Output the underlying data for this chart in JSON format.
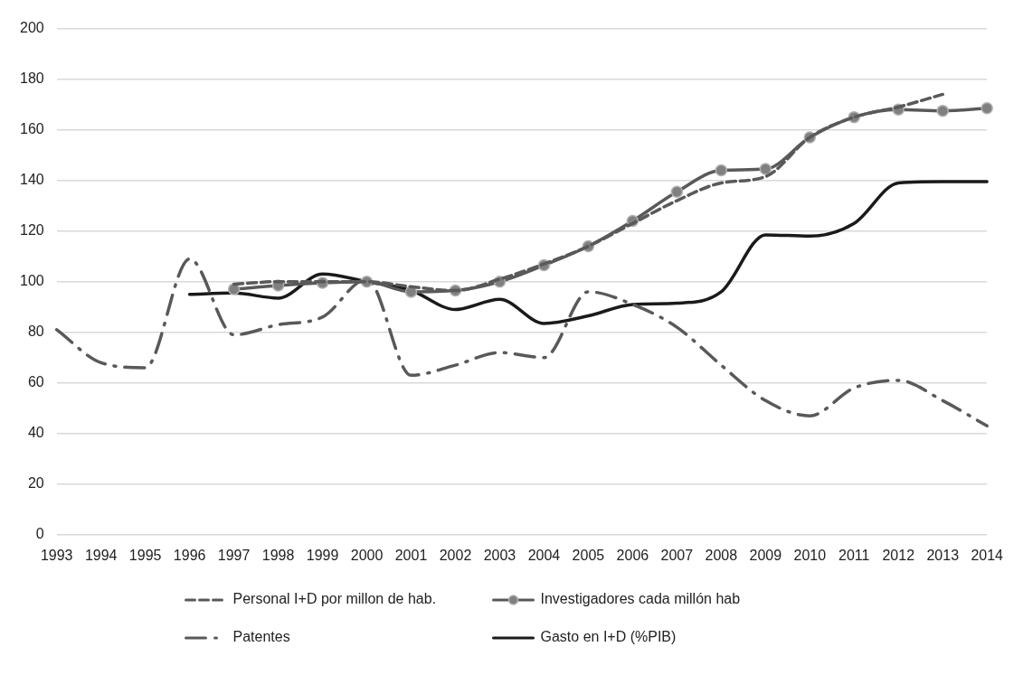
{
  "chart_data": {
    "type": "line",
    "categories": [
      "1993",
      "1994",
      "1995",
      "1996",
      "1997",
      "1998",
      "1999",
      "2000",
      "2001",
      "2002",
      "2003",
      "2004",
      "2005",
      "2006",
      "2007",
      "2008",
      "2009",
      "2010",
      "2011",
      "2012",
      "2013",
      "2014"
    ],
    "series": [
      {
        "name": "Personal I+D por millon de hab.",
        "color": "#595959",
        "line_style": "dashed",
        "marker": "none",
        "values": [
          null,
          null,
          null,
          null,
          99,
          100,
          100,
          100,
          98,
          96.5,
          101,
          107,
          114,
          123,
          132,
          139,
          141.5,
          157,
          165,
          169,
          174,
          null
        ]
      },
      {
        "name": "Investigadores cada millón hab",
        "color": "#595959",
        "line_style": "solid",
        "marker": "circle",
        "values": [
          null,
          null,
          null,
          null,
          97,
          98.5,
          99.5,
          100,
          96,
          96.5,
          100,
          106.5,
          114,
          124,
          135.5,
          144,
          144.5,
          157,
          165,
          168,
          167.5,
          168.5
        ]
      },
      {
        "name": "Patentes",
        "color": "#595959",
        "line_style": "dashdot",
        "marker": "none",
        "values": [
          81,
          68,
          66,
          109,
          79,
          83,
          86,
          101,
          63,
          67,
          72,
          70,
          96,
          91,
          82,
          67,
          53,
          47,
          58,
          61,
          53,
          43
        ]
      },
      {
        "name": "Gasto en I+D (%PIB)",
        "color": "#1a1a1a",
        "line_style": "solid",
        "marker": "none",
        "values": [
          null,
          null,
          null,
          95,
          95.5,
          93.5,
          103,
          100,
          96.5,
          89,
          93,
          83.5,
          86.5,
          91,
          91.5,
          96,
          118.5,
          118,
          123,
          139,
          139.5,
          139.5
        ]
      }
    ],
    "ylim": [
      0,
      200
    ],
    "yticks": [
      0,
      20,
      40,
      60,
      80,
      100,
      120,
      140,
      160,
      180,
      200
    ],
    "grid": "y",
    "legend": "bottom"
  }
}
